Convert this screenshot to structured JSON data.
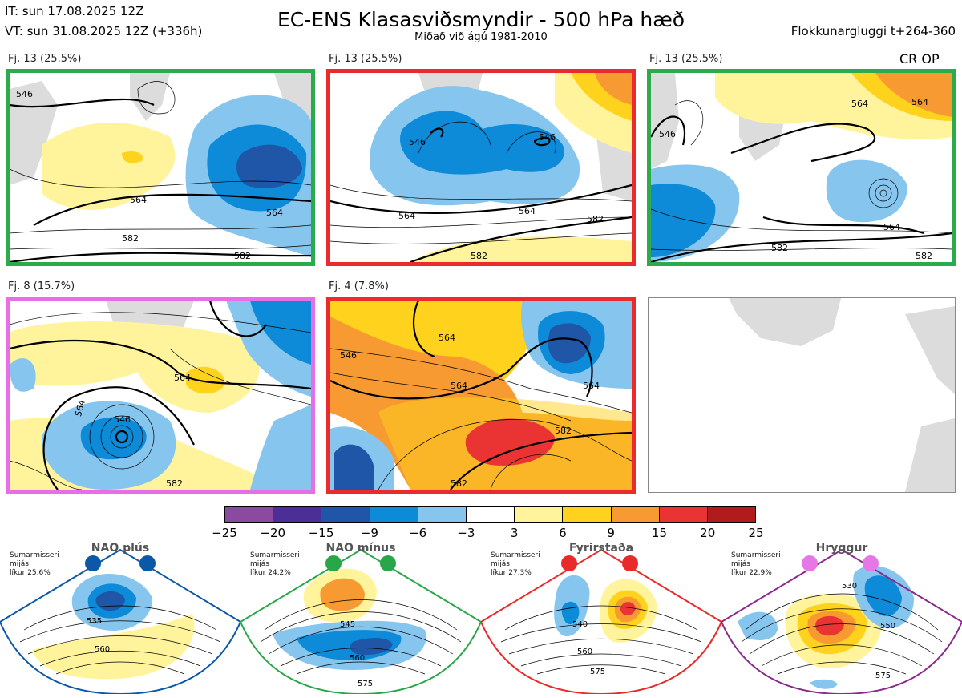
{
  "header": {
    "it_line": "IT: sun 17.08.2025 12Z",
    "vt_line": "VT: sun 31.08.2025 12Z  (+336h)",
    "title": "EC-ENS Klasasviðsmyndir - 500 hPa hæð",
    "subtitle": "Miðað við ágú 1981-2010",
    "window": "Flokkunargluggi t+264-360",
    "cr_op": "CR OP"
  },
  "panels": [
    {
      "label": "Fj. 13 (25.5%)",
      "border": "#2bab4a",
      "contours": [
        "546",
        "564",
        "564",
        "582",
        "582"
      ]
    },
    {
      "label": "Fj. 13 (25.5%)",
      "border": "#ea2b2b",
      "contours": [
        "546",
        "546",
        "564",
        "564",
        "582",
        "582"
      ]
    },
    {
      "label": "Fj. 13 (25.5%)",
      "border": "#2bab4a",
      "contours": [
        "546",
        "564",
        "564",
        "564",
        "582",
        "582"
      ]
    },
    {
      "label": "Fj. 8 (15.7%)",
      "border": "#e86ee8",
      "contours": [
        "546",
        "564",
        "564",
        "582"
      ]
    },
    {
      "label": "Fj. 4 (7.8%)",
      "border": "#ea2b2b",
      "contours": [
        "546",
        "564",
        "564",
        "564",
        "582",
        "582"
      ]
    }
  ],
  "colorbar": {
    "ticks": [
      "−25",
      "−20",
      "−15",
      "−9",
      "−6",
      "−3",
      "3",
      "6",
      "9",
      "15",
      "20",
      "25"
    ],
    "colors": [
      "#8a4aa0",
      "#4b2f96",
      "#1f56a8",
      "#0d8ad8",
      "#86c5ee",
      "#ffffff",
      "#fff49c",
      "#ffd21d",
      "#f79a32",
      "#ea3434",
      "#b21b1b"
    ]
  },
  "regimes": [
    {
      "name": "NAO plús",
      "season": "Sumarmisseri",
      "mean": "mijás",
      "prob": "líkur 25,6%",
      "color": "#0b58a8",
      "labels": [
        "535",
        "560"
      ]
    },
    {
      "name": "NAO mínus",
      "season": "Sumarmisseri",
      "mean": "mijás",
      "prob": "líkur 24,2%",
      "color": "#2aa64a",
      "labels": [
        "545",
        "560",
        "575"
      ]
    },
    {
      "name": "Fyrirstaða",
      "season": "Sumarmisseri",
      "mean": "mijás",
      "prob": "líkur 27,3%",
      "color": "#e82a2a",
      "labels": [
        "540",
        "560",
        "575"
      ]
    },
    {
      "name": "Hryggur",
      "season": "Sumarmisseri",
      "mean": "mijás",
      "prob": "líkur 22,9%",
      "color": "#e577e6",
      "labels": [
        "530",
        "550",
        "575"
      ]
    }
  ],
  "chart_data": {
    "type": "heatmap",
    "title": "EC-ENS Klasasviðsmyndir - 500 hPa hæð",
    "subtitle": "Miðað við ágú 1981-2010",
    "quantity": "500 hPa height anomaly (dam) with contours",
    "contour_levels": [
      546,
      564,
      582
    ],
    "colorbar_levels": [
      -25,
      -20,
      -15,
      -9,
      -6,
      -3,
      3,
      6,
      9,
      15,
      20,
      25
    ],
    "clusters": [
      {
        "label": "Fj. 13 (25.5%)",
        "pct": 25.5
      },
      {
        "label": "Fj. 13 (25.5%)",
        "pct": 25.5
      },
      {
        "label": "Fj. 13 (25.5%)",
        "pct": 25.5
      },
      {
        "label": "Fj. 8 (15.7%)",
        "pct": 15.7
      },
      {
        "label": "Fj. 4 (7.8%)",
        "pct": 7.8
      }
    ],
    "regimes": [
      {
        "name": "NAO plús",
        "prob": 25.6
      },
      {
        "name": "NAO mínus",
        "prob": 24.2
      },
      {
        "name": "Fyrirstaða",
        "prob": 27.3
      },
      {
        "name": "Hryggur",
        "prob": 22.9
      }
    ]
  }
}
